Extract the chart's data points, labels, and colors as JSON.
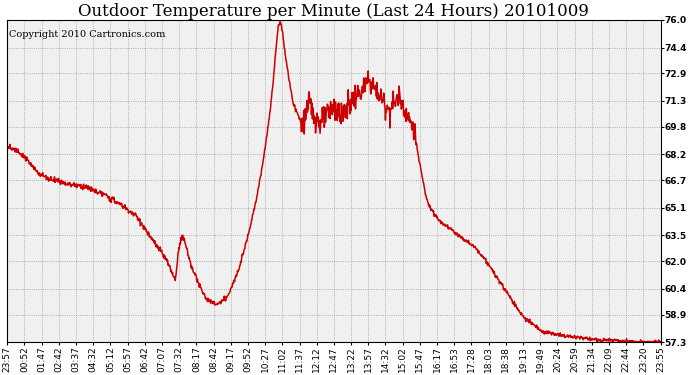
{
  "title": "Outdoor Temperature per Minute (Last 24 Hours) 20101009",
  "copyright": "Copyright 2010 Cartronics.com",
  "line_color": "#cc0000",
  "bg_color": "#ffffff",
  "plot_bg_color": "#f0f0f0",
  "grid_color": "#999999",
  "yticks": [
    57.3,
    58.9,
    60.4,
    62.0,
    63.5,
    65.1,
    66.7,
    68.2,
    69.8,
    71.3,
    72.9,
    74.4,
    76.0
  ],
  "xlabels": [
    "23:57",
    "00:52",
    "01:47",
    "02:42",
    "03:37",
    "04:32",
    "05:12",
    "05:57",
    "06:42",
    "07:07",
    "07:32",
    "08:17",
    "08:42",
    "09:17",
    "09:52",
    "10:27",
    "11:02",
    "11:37",
    "12:12",
    "12:47",
    "13:22",
    "13:57",
    "14:32",
    "15:02",
    "15:47",
    "16:17",
    "16:53",
    "17:28",
    "18:03",
    "18:38",
    "19:13",
    "19:49",
    "20:24",
    "20:59",
    "21:34",
    "22:09",
    "22:44",
    "23:20",
    "23:55"
  ],
  "ymin": 57.3,
  "ymax": 76.0,
  "title_fontsize": 12,
  "copyright_fontsize": 7,
  "tick_fontsize": 6.5,
  "line_width": 1.1
}
